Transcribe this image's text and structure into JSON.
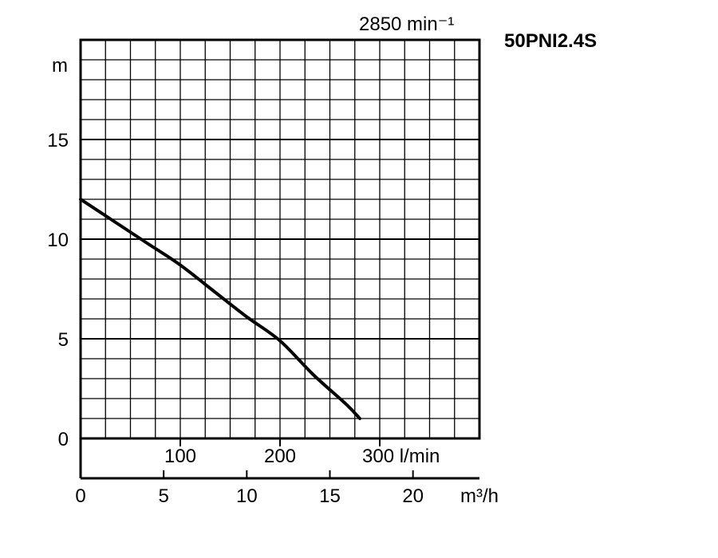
{
  "chart_data": {
    "type": "line",
    "title": "",
    "model": "50PNI2.4S",
    "speed_label": "2850 min⁻¹",
    "ylabel": "m",
    "y_unit": "m",
    "ylim": [
      0,
      20
    ],
    "y_ticks": [
      0,
      5,
      10,
      15
    ],
    "x_primary": {
      "unit": "m³/h",
      "range": [
        0,
        24
      ],
      "ticks": [
        0,
        5,
        10,
        15,
        20
      ]
    },
    "x_secondary": {
      "unit": "l/min",
      "ticks": [
        100,
        200,
        300
      ],
      "tick_labels": [
        "100",
        "200",
        "300 l/min"
      ]
    },
    "grid": true,
    "series": [
      {
        "x": [
          0,
          2,
          4,
          6,
          8,
          10,
          12,
          14,
          16,
          16.8
        ],
        "y": [
          12,
          10.9,
          9.8,
          8.7,
          7.4,
          6.1,
          4.9,
          3.2,
          1.7,
          1.0
        ]
      }
    ]
  }
}
